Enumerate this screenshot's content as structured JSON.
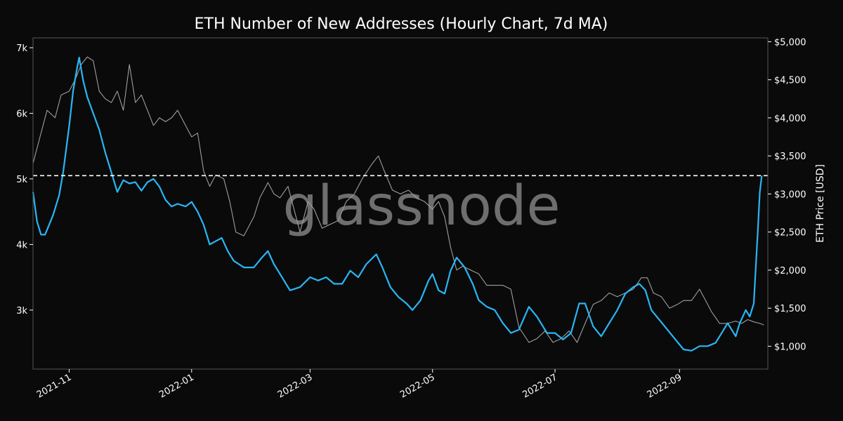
{
  "chart_data": {
    "type": "line",
    "title": "ETH Number of New Addresses (Hourly Chart, 7d MA)",
    "watermark": "glassnode",
    "ylabel_right": "ETH Price [USD]",
    "ylabel_left": "",
    "xlim": [
      "2021-10-14",
      "2022-10-15"
    ],
    "ylim_left": [
      2100,
      7150
    ],
    "ylim_right": [
      700,
      5050
    ],
    "x_ticks": [
      {
        "date": "2021-11-01",
        "label": "2021-11"
      },
      {
        "date": "2022-01-01",
        "label": "2022-01"
      },
      {
        "date": "2022-03-01",
        "label": "2022-03"
      },
      {
        "date": "2022-05-01",
        "label": "2022-05"
      },
      {
        "date": "2022-07-01",
        "label": "2022-07"
      },
      {
        "date": "2022-09-01",
        "label": "2022-09"
      }
    ],
    "y_ticks_left": [
      {
        "value": 3000,
        "label": "3k"
      },
      {
        "value": 4000,
        "label": "4k"
      },
      {
        "value": 5000,
        "label": "5k"
      },
      {
        "value": 6000,
        "label": "6k"
      },
      {
        "value": 7000,
        "label": "7k"
      }
    ],
    "y_ticks_right": [
      {
        "value": 1000,
        "label": "$1,000"
      },
      {
        "value": 1500,
        "label": "$1,500"
      },
      {
        "value": 2000,
        "label": "$2,000"
      },
      {
        "value": 2500,
        "label": "$2,500"
      },
      {
        "value": 3000,
        "label": "$3,000"
      },
      {
        "value": 3500,
        "label": "$3,500"
      },
      {
        "value": 4000,
        "label": "$4,000"
      },
      {
        "value": 4500,
        "label": "$4,500"
      },
      {
        "value": 5000,
        "label": "$5,000"
      }
    ],
    "reference_line": {
      "value": 5050,
      "style": "dashed",
      "color": "#ffffff"
    },
    "grid": false,
    "legend": "none",
    "series": [
      {
        "axis": "left",
        "color": "#29b6f6",
        "points": [
          [
            "2021-10-14",
            4800
          ],
          [
            "2021-10-16",
            4350
          ],
          [
            "2021-10-18",
            4150
          ],
          [
            "2021-10-20",
            4150
          ],
          [
            "2021-10-22",
            4300
          ],
          [
            "2021-10-24",
            4450
          ],
          [
            "2021-10-27",
            4750
          ],
          [
            "2021-10-29",
            5100
          ],
          [
            "2021-11-01",
            5800
          ],
          [
            "2021-11-03",
            6350
          ],
          [
            "2021-11-05",
            6700
          ],
          [
            "2021-11-06",
            6850
          ],
          [
            "2021-11-08",
            6500
          ],
          [
            "2021-11-10",
            6250
          ],
          [
            "2021-11-13",
            6000
          ],
          [
            "2021-11-16",
            5750
          ],
          [
            "2021-11-19",
            5400
          ],
          [
            "2021-11-22",
            5100
          ],
          [
            "2021-11-25",
            4800
          ],
          [
            "2021-11-28",
            4980
          ],
          [
            "2021-12-01",
            4930
          ],
          [
            "2021-12-04",
            4950
          ],
          [
            "2021-12-07",
            4820
          ],
          [
            "2021-12-10",
            4950
          ],
          [
            "2021-12-13",
            5000
          ],
          [
            "2021-12-16",
            4880
          ],
          [
            "2021-12-19",
            4680
          ],
          [
            "2021-12-22",
            4580
          ],
          [
            "2021-12-25",
            4620
          ],
          [
            "2021-12-29",
            4580
          ],
          [
            "2022-01-01",
            4650
          ],
          [
            "2022-01-04",
            4500
          ],
          [
            "2022-01-07",
            4300
          ],
          [
            "2022-01-10",
            4000
          ],
          [
            "2022-01-13",
            4050
          ],
          [
            "2022-01-16",
            4100
          ],
          [
            "2022-01-19",
            3900
          ],
          [
            "2022-01-22",
            3750
          ],
          [
            "2022-01-27",
            3650
          ],
          [
            "2022-02-01",
            3650
          ],
          [
            "2022-02-05",
            3800
          ],
          [
            "2022-02-08",
            3900
          ],
          [
            "2022-02-11",
            3700
          ],
          [
            "2022-02-15",
            3500
          ],
          [
            "2022-02-19",
            3300
          ],
          [
            "2022-02-24",
            3350
          ],
          [
            "2022-03-01",
            3500
          ],
          [
            "2022-03-05",
            3450
          ],
          [
            "2022-03-09",
            3500
          ],
          [
            "2022-03-13",
            3400
          ],
          [
            "2022-03-17",
            3400
          ],
          [
            "2022-03-21",
            3600
          ],
          [
            "2022-03-25",
            3500
          ],
          [
            "2022-03-29",
            3700
          ],
          [
            "2022-04-03",
            3850
          ],
          [
            "2022-04-06",
            3650
          ],
          [
            "2022-04-10",
            3350
          ],
          [
            "2022-04-14",
            3200
          ],
          [
            "2022-04-18",
            3100
          ],
          [
            "2022-04-21",
            3000
          ],
          [
            "2022-04-25",
            3150
          ],
          [
            "2022-04-29",
            3450
          ],
          [
            "2022-05-01",
            3550
          ],
          [
            "2022-05-04",
            3300
          ],
          [
            "2022-05-07",
            3250
          ],
          [
            "2022-05-10",
            3600
          ],
          [
            "2022-05-13",
            3800
          ],
          [
            "2022-05-17",
            3650
          ],
          [
            "2022-05-21",
            3400
          ],
          [
            "2022-05-24",
            3150
          ],
          [
            "2022-05-28",
            3050
          ],
          [
            "2022-06-01",
            3000
          ],
          [
            "2022-06-05",
            2800
          ],
          [
            "2022-06-09",
            2650
          ],
          [
            "2022-06-13",
            2700
          ],
          [
            "2022-06-18",
            3050
          ],
          [
            "2022-06-22",
            2900
          ],
          [
            "2022-06-27",
            2650
          ],
          [
            "2022-07-01",
            2650
          ],
          [
            "2022-07-05",
            2550
          ],
          [
            "2022-07-09",
            2650
          ],
          [
            "2022-07-13",
            3100
          ],
          [
            "2022-07-16",
            3100
          ],
          [
            "2022-07-20",
            2750
          ],
          [
            "2022-07-24",
            2600
          ],
          [
            "2022-07-28",
            2800
          ],
          [
            "2022-08-01",
            3000
          ],
          [
            "2022-08-05",
            3250
          ],
          [
            "2022-08-09",
            3350
          ],
          [
            "2022-08-12",
            3400
          ],
          [
            "2022-08-15",
            3300
          ],
          [
            "2022-08-18",
            3000
          ],
          [
            "2022-08-22",
            2850
          ],
          [
            "2022-08-26",
            2700
          ],
          [
            "2022-08-30",
            2550
          ],
          [
            "2022-09-03",
            2400
          ],
          [
            "2022-09-07",
            2380
          ],
          [
            "2022-09-11",
            2450
          ],
          [
            "2022-09-15",
            2450
          ],
          [
            "2022-09-19",
            2500
          ],
          [
            "2022-09-22",
            2650
          ],
          [
            "2022-09-25",
            2800
          ],
          [
            "2022-09-29",
            2600
          ],
          [
            "2022-10-01",
            2800
          ],
          [
            "2022-10-04",
            3000
          ],
          [
            "2022-10-06",
            2900
          ],
          [
            "2022-10-08",
            3100
          ],
          [
            "2022-10-10",
            4200
          ],
          [
            "2022-10-11",
            4800
          ],
          [
            "2022-10-12",
            5050
          ]
        ]
      },
      {
        "axis": "right",
        "color": "#9e9e9e",
        "points": [
          [
            "2021-10-14",
            3400
          ],
          [
            "2021-10-18",
            3800
          ],
          [
            "2021-10-21",
            4100
          ],
          [
            "2021-10-25",
            4000
          ],
          [
            "2021-10-28",
            4300
          ],
          [
            "2021-11-01",
            4350
          ],
          [
            "2021-11-04",
            4500
          ],
          [
            "2021-11-07",
            4700
          ],
          [
            "2021-11-10",
            4800
          ],
          [
            "2021-11-13",
            4750
          ],
          [
            "2021-11-16",
            4350
          ],
          [
            "2021-11-19",
            4250
          ],
          [
            "2021-11-22",
            4200
          ],
          [
            "2021-11-25",
            4350
          ],
          [
            "2021-11-28",
            4100
          ],
          [
            "2021-12-01",
            4700
          ],
          [
            "2021-12-04",
            4200
          ],
          [
            "2021-12-07",
            4300
          ],
          [
            "2021-12-10",
            4100
          ],
          [
            "2021-12-13",
            3900
          ],
          [
            "2021-12-16",
            4000
          ],
          [
            "2021-12-19",
            3950
          ],
          [
            "2021-12-22",
            4000
          ],
          [
            "2021-12-25",
            4100
          ],
          [
            "2021-12-28",
            3950
          ],
          [
            "2022-01-01",
            3750
          ],
          [
            "2022-01-04",
            3800
          ],
          [
            "2022-01-07",
            3300
          ],
          [
            "2022-01-10",
            3100
          ],
          [
            "2022-01-13",
            3250
          ],
          [
            "2022-01-17",
            3200
          ],
          [
            "2022-01-20",
            2900
          ],
          [
            "2022-01-23",
            2500
          ],
          [
            "2022-01-27",
            2450
          ],
          [
            "2022-02-01",
            2700
          ],
          [
            "2022-02-04",
            2950
          ],
          [
            "2022-02-08",
            3150
          ],
          [
            "2022-02-11",
            3000
          ],
          [
            "2022-02-14",
            2950
          ],
          [
            "2022-02-18",
            3100
          ],
          [
            "2022-02-21",
            2800
          ],
          [
            "2022-02-24",
            2500
          ],
          [
            "2022-02-28",
            2900
          ],
          [
            "2022-03-03",
            2800
          ],
          [
            "2022-03-07",
            2550
          ],
          [
            "2022-03-11",
            2600
          ],
          [
            "2022-03-15",
            2650
          ],
          [
            "2022-03-19",
            2900
          ],
          [
            "2022-03-23",
            3000
          ],
          [
            "2022-03-27",
            3200
          ],
          [
            "2022-04-01",
            3400
          ],
          [
            "2022-04-04",
            3500
          ],
          [
            "2022-04-07",
            3300
          ],
          [
            "2022-04-11",
            3050
          ],
          [
            "2022-04-15",
            3000
          ],
          [
            "2022-04-19",
            3050
          ],
          [
            "2022-04-23",
            2950
          ],
          [
            "2022-04-27",
            2900
          ],
          [
            "2022-05-01",
            2800
          ],
          [
            "2022-05-04",
            2900
          ],
          [
            "2022-05-07",
            2700
          ],
          [
            "2022-05-10",
            2300
          ],
          [
            "2022-05-13",
            2000
          ],
          [
            "2022-05-16",
            2050
          ],
          [
            "2022-05-20",
            2000
          ],
          [
            "2022-05-24",
            1950
          ],
          [
            "2022-05-28",
            1800
          ],
          [
            "2022-06-01",
            1800
          ],
          [
            "2022-06-05",
            1800
          ],
          [
            "2022-06-09",
            1750
          ],
          [
            "2022-06-13",
            1250
          ],
          [
            "2022-06-18",
            1050
          ],
          [
            "2022-06-22",
            1100
          ],
          [
            "2022-06-26",
            1200
          ],
          [
            "2022-06-30",
            1050
          ],
          [
            "2022-07-04",
            1100
          ],
          [
            "2022-07-08",
            1200
          ],
          [
            "2022-07-12",
            1050
          ],
          [
            "2022-07-16",
            1300
          ],
          [
            "2022-07-20",
            1550
          ],
          [
            "2022-07-24",
            1600
          ],
          [
            "2022-07-28",
            1700
          ],
          [
            "2022-08-01",
            1650
          ],
          [
            "2022-08-05",
            1700
          ],
          [
            "2022-08-09",
            1750
          ],
          [
            "2022-08-13",
            1900
          ],
          [
            "2022-08-16",
            1900
          ],
          [
            "2022-08-19",
            1700
          ],
          [
            "2022-08-23",
            1650
          ],
          [
            "2022-08-27",
            1500
          ],
          [
            "2022-08-31",
            1550
          ],
          [
            "2022-09-03",
            1600
          ],
          [
            "2022-09-07",
            1600
          ],
          [
            "2022-09-11",
            1750
          ],
          [
            "2022-09-14",
            1600
          ],
          [
            "2022-09-17",
            1450
          ],
          [
            "2022-09-21",
            1300
          ],
          [
            "2022-09-25",
            1300
          ],
          [
            "2022-09-29",
            1330
          ],
          [
            "2022-10-02",
            1300
          ],
          [
            "2022-10-05",
            1350
          ],
          [
            "2022-10-08",
            1320
          ],
          [
            "2022-10-11",
            1300
          ],
          [
            "2022-10-13",
            1280
          ]
        ]
      }
    ]
  }
}
